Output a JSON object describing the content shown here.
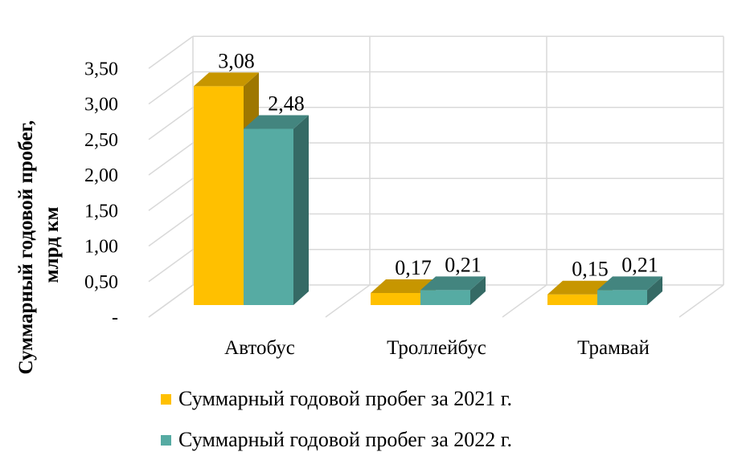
{
  "chart_data": {
    "type": "bar",
    "categories": [
      "Автобус",
      "Троллейбус",
      "Трамвай"
    ],
    "series": [
      {
        "name": "Суммарный годовой пробег за 2021 г.",
        "values": [
          3.08,
          0.17,
          0.15
        ],
        "labels": [
          "3,08",
          "0,17",
          "0,15"
        ],
        "color": "#FFC000"
      },
      {
        "name": "Суммарный годовой пробег за 2022 г.",
        "values": [
          2.48,
          0.21,
          0.21
        ],
        "labels": [
          "2,48",
          "0,21",
          "0,21"
        ],
        "color": "#56ABA3"
      }
    ],
    "ylabel_lines": [
      "Суммарный годовой пробег,",
      "млрд км"
    ],
    "ylim": [
      0,
      3.5
    ],
    "yticks": [
      0,
      0.5,
      1,
      1.5,
      2,
      2.5,
      3,
      3.5
    ],
    "ytick_labels": [
      "-",
      "0,50",
      "1,00",
      "1,50",
      "2,00",
      "2,50",
      "3,00",
      "3,50"
    ],
    "grid": true,
    "legend_position": "bottom",
    "three_d": true
  }
}
